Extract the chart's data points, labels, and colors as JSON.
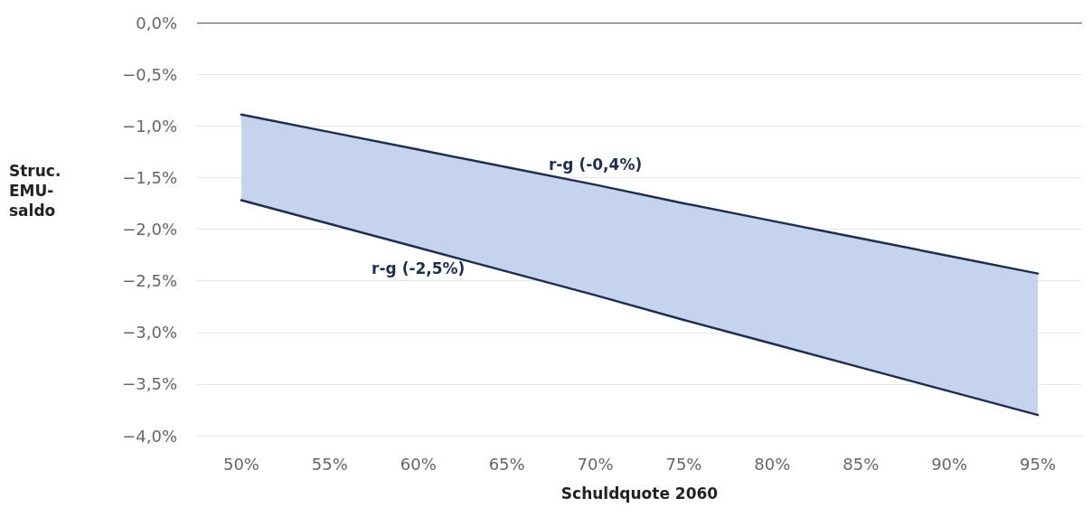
{
  "chart_data": {
    "type": "line",
    "xlabel": "Schuldquote 2060",
    "ylabel": "Struc.\nEMU-\nsaldo",
    "categories": [
      "50%",
      "55%",
      "60%",
      "65%",
      "70%",
      "75%",
      "80%",
      "85%",
      "90%",
      "95%"
    ],
    "series": [
      {
        "name": "r-g (-0,4%)",
        "color": "#1f2d4f",
        "values": [
          -0.89,
          -1.06,
          -1.23,
          -1.4,
          -1.57,
          -1.75,
          -1.92,
          -2.09,
          -2.26,
          -2.43
        ],
        "upper": [
          -0.89,
          -1.06,
          -1.23,
          -1.4,
          -1.57,
          -1.75,
          -1.92,
          -2.09,
          -2.26,
          -2.43
        ],
        "lower": [
          -1.72,
          -1.95,
          -2.18,
          -2.41,
          -2.64,
          -2.88,
          -3.11,
          -3.34,
          -3.57,
          -3.8
        ]
      },
      {
        "name": "r-g (-2,5%)",
        "color": "#1f2d4f",
        "values": [
          -1.72,
          -1.95,
          -2.18,
          -2.41,
          -2.64,
          -2.88,
          -3.11,
          -3.34,
          -3.57,
          -3.8
        ]
      }
    ],
    "ylim": [
      -4,
      0
    ],
    "yticks": [
      {
        "value": 0,
        "label": "0,0%"
      },
      {
        "value": -0.5,
        "label": "−0,5%"
      },
      {
        "value": -1,
        "label": "−1,0%"
      },
      {
        "value": -1.5,
        "label": "−1,5%"
      },
      {
        "value": -2,
        "label": "−2,0%"
      },
      {
        "value": -2.5,
        "label": "−2,5%"
      },
      {
        "value": -3,
        "label": "−3,0%"
      },
      {
        "value": -3.5,
        "label": "−3,5%"
      },
      {
        "value": -4,
        "label": "−4,0%"
      }
    ],
    "ref_lines": [
      {
        "axis": "y",
        "value": 0,
        "color": "#555555"
      }
    ],
    "grid": "y",
    "legend": false,
    "marker": "none",
    "line_style": "solid"
  }
}
